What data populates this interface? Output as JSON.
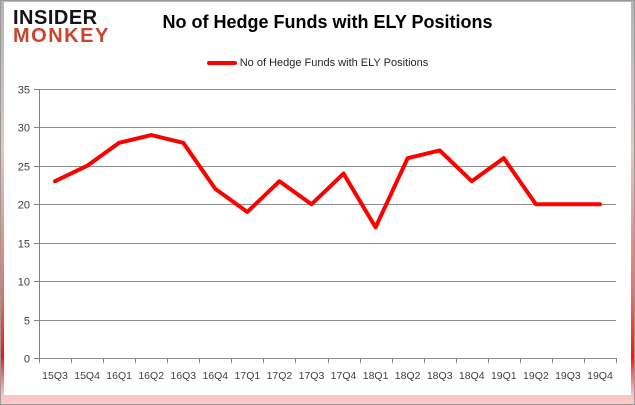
{
  "logo": {
    "line1": "INSIDER",
    "line2": "MONKEY"
  },
  "header": {
    "title": "No of Hedge Funds with ELY Positions"
  },
  "legend": {
    "label": "No of Hedge Funds with ELY Positions"
  },
  "colors": {
    "series_line": "#ff0000",
    "grid": "#8e8e8e",
    "axis": "#808080",
    "axis_text": "#3f3f3f",
    "logo_black": "#141414",
    "logo_red": "#c9452e",
    "title_text": "#000000"
  },
  "chart_data": {
    "type": "line",
    "title": "No of Hedge Funds with ELY Positions",
    "xlabel": "",
    "ylabel": "",
    "ylim": [
      0,
      35
    ],
    "ytick_step": 5,
    "grid": true,
    "legend_position": "top",
    "categories": [
      "15Q3",
      "15Q4",
      "16Q1",
      "16Q2",
      "16Q3",
      "16Q4",
      "17Q1",
      "17Q2",
      "17Q3",
      "17Q4",
      "18Q1",
      "18Q2",
      "18Q3",
      "18Q4",
      "19Q1",
      "19Q2",
      "19Q3",
      "19Q4"
    ],
    "series": [
      {
        "name": "No of Hedge Funds with ELY Positions",
        "color": "#ff0000",
        "values": [
          23,
          25,
          28,
          29,
          28,
          22,
          19,
          23,
          20,
          24,
          17,
          26,
          27,
          23,
          26,
          20,
          20,
          20
        ]
      }
    ]
  }
}
